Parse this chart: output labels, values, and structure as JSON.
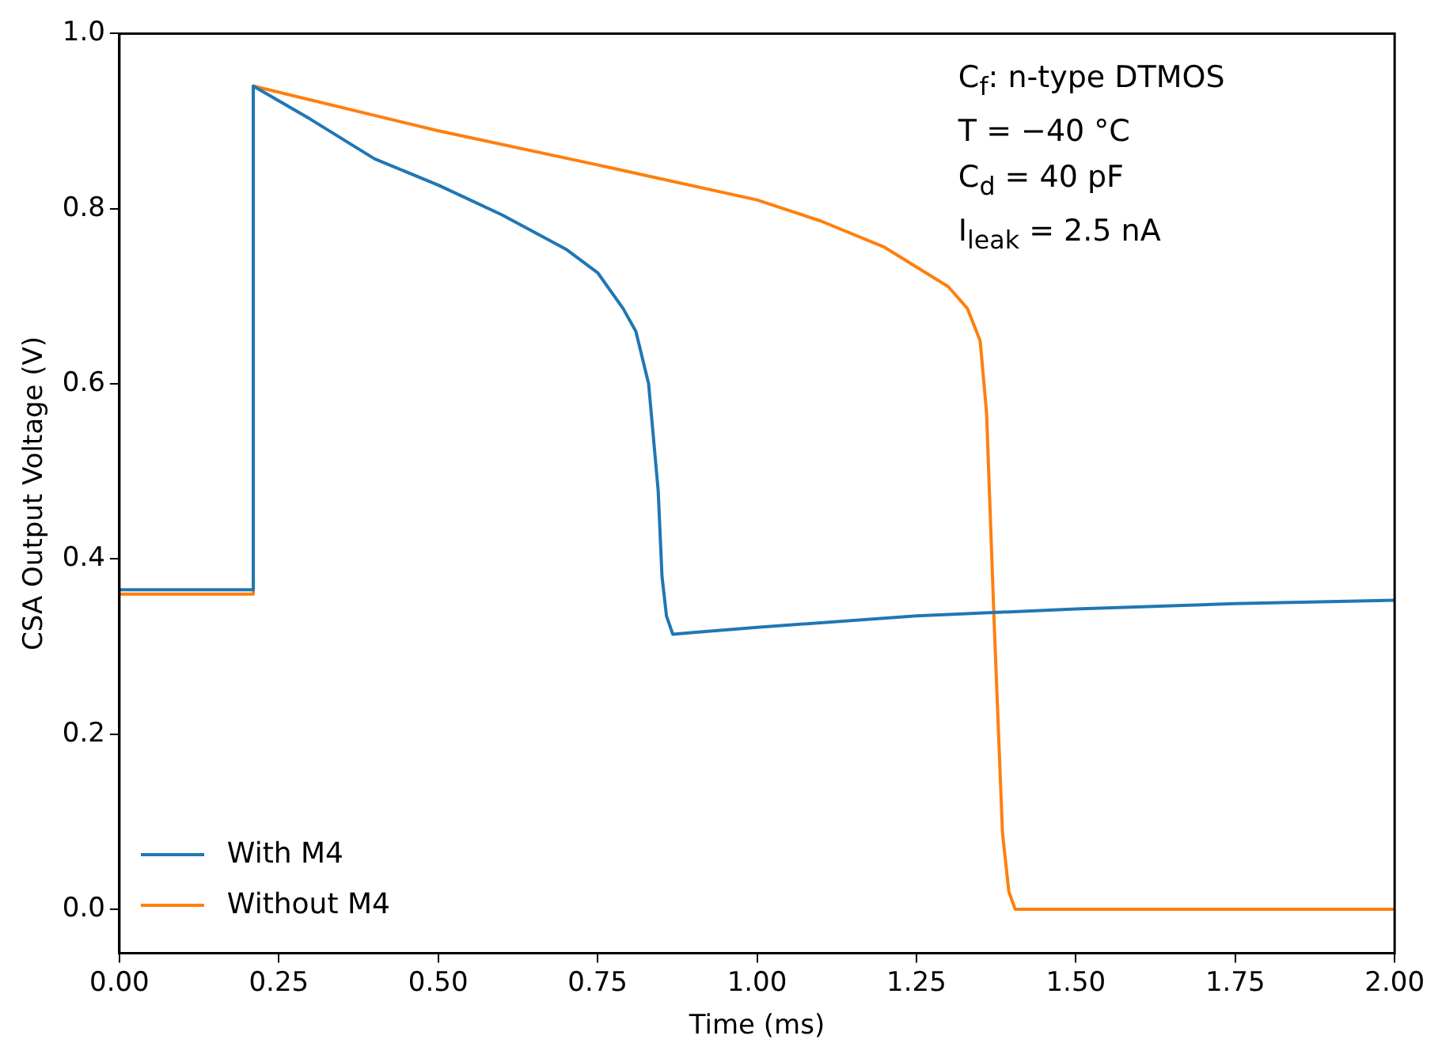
{
  "chart_data": {
    "type": "line",
    "xlabel": "Time (ms)",
    "ylabel": "CSA Output Voltage (V)",
    "xlim": [
      0,
      2
    ],
    "xticks": [
      {
        "value": 0,
        "label": "0.00"
      },
      {
        "value": 0.25,
        "label": "0.25"
      },
      {
        "value": 0.5,
        "label": "0.50"
      },
      {
        "value": 0.75,
        "label": "0.75"
      },
      {
        "value": 1,
        "label": "1.00"
      },
      {
        "value": 1.25,
        "label": "1.25"
      },
      {
        "value": 1.5,
        "label": "1.50"
      },
      {
        "value": 1.75,
        "label": "1.75"
      },
      {
        "value": 2,
        "label": "2.00"
      }
    ],
    "ylim": [
      -0.05,
      1.0
    ],
    "yticks": [
      {
        "value": 0,
        "label": "0.0"
      },
      {
        "value": 0.2,
        "label": "0.2"
      },
      {
        "value": 0.4,
        "label": "0.4"
      },
      {
        "value": 0.6,
        "label": "0.6"
      },
      {
        "value": 0.8,
        "label": "0.8"
      },
      {
        "value": 1,
        "label": "1.0"
      }
    ],
    "grid": false,
    "legend": "bottom left",
    "marker": "none",
    "line_style": "solid",
    "annotations": [
      "C$_{f}$: n-type DTMOS",
      "T = −40 °C",
      "C$_{d}$ = 40 pF",
      "I$_{leak}$ = 2.5 nA"
    ],
    "series": [
      {
        "name": "With M4",
        "color": "#1f77b4",
        "x": [
          0,
          0.21,
          0.21,
          0.3,
          0.4,
          0.5,
          0.6,
          0.7,
          0.75,
          0.79,
          0.81,
          0.83,
          0.845,
          0.851,
          0.858,
          0.868,
          0.9,
          1.0,
          1.25,
          1.5,
          1.75,
          2.0
        ],
        "values": [
          0.365,
          0.365,
          0.94,
          0.902,
          0.857,
          0.827,
          0.793,
          0.754,
          0.727,
          0.686,
          0.66,
          0.6,
          0.478,
          0.38,
          0.335,
          0.314,
          0.316,
          0.322,
          0.335,
          0.343,
          0.349,
          0.353
        ]
      },
      {
        "name": "Without M4",
        "color": "#ff7f0e",
        "x": [
          0,
          0.21,
          0.21,
          0.5,
          0.75,
          1.0,
          1.1,
          1.2,
          1.3,
          1.33,
          1.35,
          1.36,
          1.372,
          1.385,
          1.395,
          1.405,
          2.0
        ],
        "values": [
          0.36,
          0.36,
          0.94,
          0.889,
          0.85,
          0.81,
          0.786,
          0.756,
          0.711,
          0.686,
          0.649,
          0.567,
          0.326,
          0.087,
          0.02,
          0,
          0
        ]
      }
    ]
  }
}
